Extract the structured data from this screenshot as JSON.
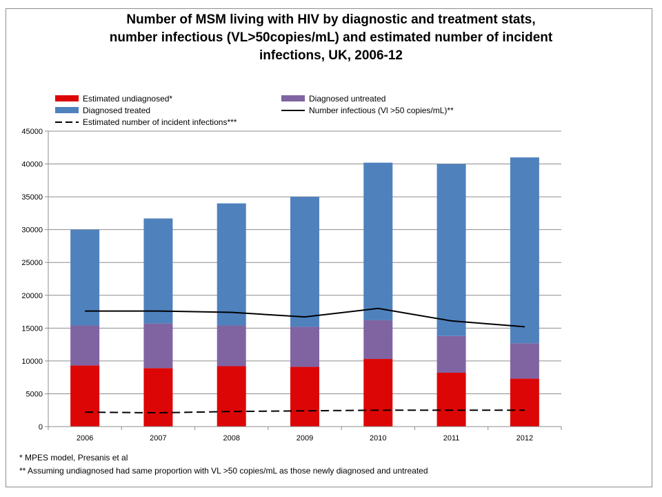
{
  "title": {
    "lines": [
      "Number of MSM living with HIV by diagnostic and treatment stats,",
      "number infectious (VL>50copies/mL) and estimated number of incident",
      "infections, UK, 2006-12"
    ]
  },
  "footnotes": [
    "* MPES model, Presanis et al",
    "** Assuming undiagnosed had same proportion with VL >50 copies/mL as those newly diagnosed and untreated"
  ],
  "chart_data": {
    "type": "bar",
    "stacked": true,
    "title": "Number of MSM living with HIV by diagnostic and treatment stats, number infectious (VL>50copies/mL) and estimated number of incident infections, UK, 2006-12",
    "categories": [
      "2006",
      "2007",
      "2008",
      "2009",
      "2010",
      "2011",
      "2012"
    ],
    "ylim": [
      0,
      45000
    ],
    "yticks": [
      0,
      5000,
      10000,
      15000,
      20000,
      25000,
      30000,
      35000,
      40000,
      45000
    ],
    "grid": true,
    "legend_position": "top",
    "series": [
      {
        "name": "Estimated undiagnosed*",
        "kind": "bar",
        "color": "#dd0606",
        "values": [
          9300,
          8900,
          9200,
          9100,
          10300,
          8200,
          7300
        ]
      },
      {
        "name": "Diagnosed untreated",
        "kind": "bar",
        "color": "#8064a2",
        "values": [
          6100,
          6800,
          6200,
          6100,
          5900,
          5600,
          5400
        ]
      },
      {
        "name": "Diagnosed treated",
        "kind": "bar",
        "color": "#4f81bd",
        "values": [
          14600,
          16000,
          18600,
          19800,
          24000,
          26200,
          28300
        ]
      },
      {
        "name": "Number infectious (Vl >50 copies/mL)**",
        "kind": "line",
        "style": "solid",
        "color": "#000000",
        "values": [
          17600,
          17600,
          17400,
          16700,
          18000,
          16100,
          15200
        ]
      },
      {
        "name": "Estimated number of incident infections***",
        "kind": "line",
        "style": "dashed",
        "color": "#000000",
        "values": [
          2200,
          2100,
          2300,
          2400,
          2500,
          2500,
          2500
        ]
      }
    ]
  }
}
